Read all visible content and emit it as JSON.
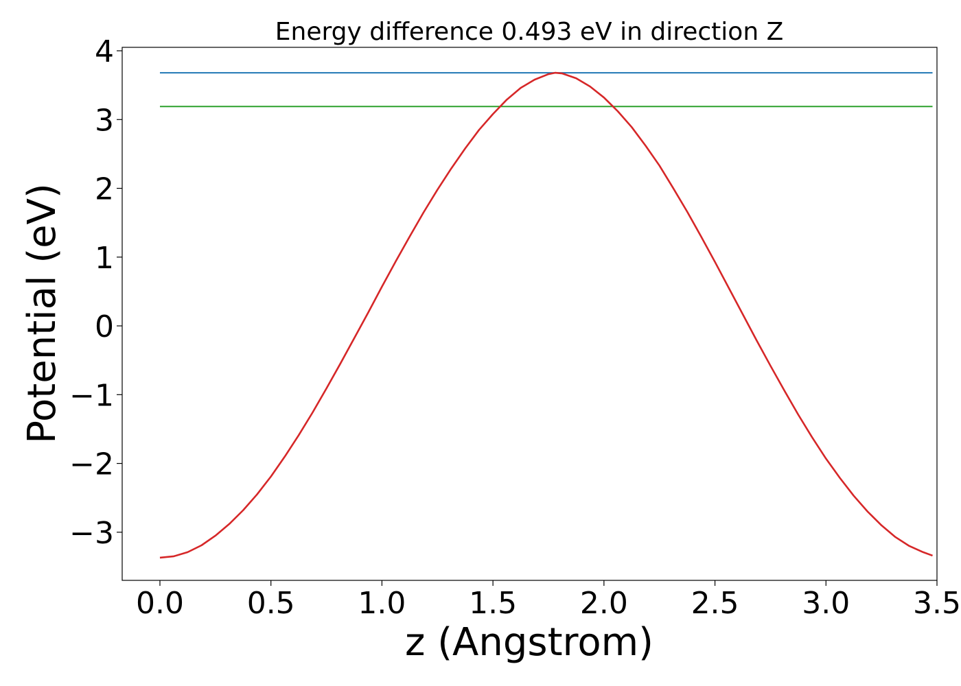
{
  "chart_data": {
    "type": "line",
    "title": "Energy difference 0.493 eV in direction Z",
    "xlabel": "z (Angstrom)",
    "ylabel": "Potential (eV)",
    "xlim": [
      -0.17,
      3.5
    ],
    "ylim": [
      -3.7,
      4.05
    ],
    "x_ticks": [
      0.0,
      0.5,
      1.0,
      1.5,
      2.0,
      2.5,
      3.0,
      3.5
    ],
    "x_tick_labels": [
      "0.0",
      "0.5",
      "1.0",
      "1.5",
      "2.0",
      "2.5",
      "3.0",
      "3.5"
    ],
    "y_ticks": [
      -3,
      -2,
      -1,
      0,
      1,
      2,
      3,
      4
    ],
    "y_tick_labels": [
      "−3",
      "−2",
      "−1",
      "0",
      "1",
      "2",
      "3",
      "4"
    ],
    "grid": false,
    "legend": "none",
    "series": [
      {
        "color": "#1f77b4",
        "x": [
          0.0,
          3.48
        ],
        "y": [
          3.68,
          3.68
        ]
      },
      {
        "color": "#2ca02c",
        "x": [
          0.0,
          3.48
        ],
        "y": [
          3.19,
          3.19
        ]
      },
      {
        "color": "#d62728",
        "x": [
          0.0,
          0.0625,
          0.125,
          0.1875,
          0.25,
          0.3125,
          0.375,
          0.4375,
          0.5,
          0.5625,
          0.625,
          0.6875,
          0.75,
          0.8125,
          0.875,
          0.9375,
          1.0,
          1.0625,
          1.125,
          1.1875,
          1.25,
          1.3125,
          1.375,
          1.4375,
          1.5,
          1.5625,
          1.625,
          1.6875,
          1.75,
          1.78,
          1.8125,
          1.875,
          1.9375,
          2.0,
          2.0625,
          2.125,
          2.1875,
          2.25,
          2.3125,
          2.375,
          2.4375,
          2.5,
          2.5625,
          2.625,
          2.6875,
          2.75,
          2.8125,
          2.875,
          2.9375,
          3.0,
          3.0625,
          3.125,
          3.1875,
          3.25,
          3.3125,
          3.375,
          3.4375,
          3.48
        ],
        "y": [
          -3.37,
          -3.35,
          -3.29,
          -3.19,
          -3.05,
          -2.88,
          -2.68,
          -2.45,
          -2.19,
          -1.9,
          -1.59,
          -1.26,
          -0.91,
          -0.55,
          -0.18,
          0.19,
          0.57,
          0.94,
          1.3,
          1.65,
          1.98,
          2.29,
          2.58,
          2.85,
          3.08,
          3.29,
          3.46,
          3.58,
          3.66,
          3.68,
          3.67,
          3.6,
          3.48,
          3.32,
          3.12,
          2.89,
          2.62,
          2.33,
          2.0,
          1.66,
          1.3,
          0.93,
          0.55,
          0.17,
          -0.21,
          -0.58,
          -0.94,
          -1.29,
          -1.62,
          -1.93,
          -2.21,
          -2.47,
          -2.7,
          -2.9,
          -3.07,
          -3.2,
          -3.29,
          -3.34
        ]
      }
    ]
  }
}
